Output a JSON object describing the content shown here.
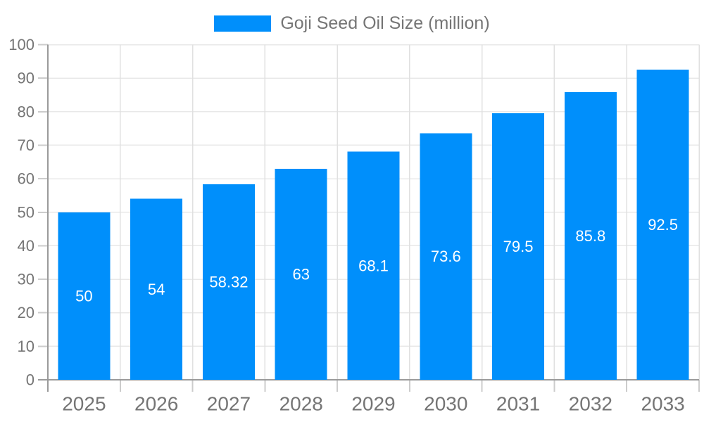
{
  "chart_data": {
    "type": "bar",
    "title": "Goji Seed Oil Size (million)",
    "legend": {
      "position": "top",
      "label": "Goji Seed Oil Size (million)"
    },
    "categories": [
      "2025",
      "2026",
      "2027",
      "2028",
      "2029",
      "2030",
      "2031",
      "2032",
      "2033"
    ],
    "series": [
      {
        "name": "Goji Seed Oil Size (million)",
        "values": [
          50,
          54,
          58.32,
          63,
          68.1,
          73.6,
          79.5,
          85.8,
          92.5
        ],
        "value_labels": [
          "50",
          "54",
          "58.32",
          "63",
          "68.1",
          "73.6",
          "79.5",
          "85.8",
          "92.5"
        ]
      }
    ],
    "xlabel": "",
    "ylabel": "",
    "ylim": [
      0,
      100
    ],
    "yticks": [
      0,
      10,
      20,
      30,
      40,
      50,
      60,
      70,
      80,
      90,
      100
    ],
    "ytick_labels": [
      "0",
      "10",
      "20",
      "30",
      "40",
      "50",
      "60",
      "70",
      "80",
      "90",
      "100"
    ],
    "grid": true,
    "value_label_position": "inside-center",
    "colors": {
      "bar": "#008FFB",
      "bar_label": "#FFFFFF",
      "axis_line": "#9A9A9A",
      "tick_mark": "#CCCCCC",
      "grid_h": "#E8E8E8",
      "grid_v": "#E0E0E0",
      "tick_label": "#757575",
      "legend_text": "#757575",
      "background": "#FFFFFF"
    }
  }
}
